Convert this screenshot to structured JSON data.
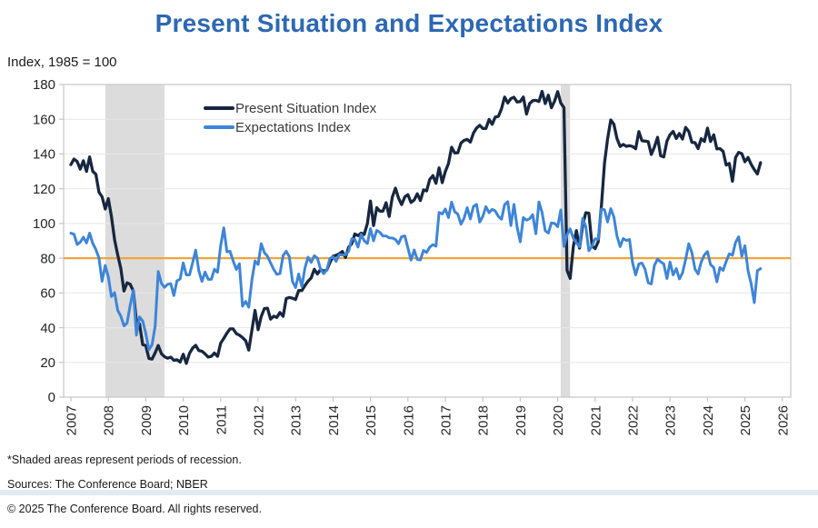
{
  "header": {
    "title": "Present Situation and Expectations Index",
    "subtitle": "Index, 1985 = 100"
  },
  "footnotes": {
    "line1": "*Shaded areas represent periods of recession.",
    "line2": "Sources:  The Conference Board;  NBER",
    "line3": "© 2025 The Conference Board. All rights reserved."
  },
  "colors": {
    "title_blue": "#2d68b3",
    "present_situation": "#172740",
    "expectations": "#3e85d8",
    "benchmark_orange": "#efa63b",
    "recession_gray": "#dcdcdc",
    "gridline": "#e7e7e7",
    "axis_frame": "#c6c6c6",
    "footer_bar": "#e2eaf2"
  },
  "chart_data": {
    "type": "line",
    "title": "Present Situation and Expectations Index",
    "ylabel": "Index, 1985 = 100",
    "xlabel": "",
    "grid": true,
    "legend_position": "top-center-inside",
    "ylim": [
      0,
      180
    ],
    "y_ticks": [
      0,
      20,
      40,
      60,
      80,
      100,
      120,
      140,
      160,
      180
    ],
    "x_ticks": [
      2007,
      2008,
      2009,
      2010,
      2011,
      2012,
      2013,
      2014,
      2015,
      2016,
      2017,
      2018,
      2019,
      2020,
      2021,
      2022,
      2023,
      2024,
      2025,
      2026
    ],
    "x_start_year": 2007,
    "points_per_year": 12,
    "x_end_label": "2025-06",
    "benchmark": {
      "value": 80,
      "color": "#efa63b"
    },
    "recessions": [
      {
        "from": 2007.92,
        "to": 2009.5
      },
      {
        "from": 2020.08,
        "to": 2020.33
      }
    ],
    "recession_note": "Shaded areas represent periods of recession",
    "series": [
      {
        "name": "Present Situation Index",
        "color": "#172740",
        "values": [
          133.9,
          137.1,
          135.7,
          131.3,
          136.1,
          129.9,
          138.3,
          130.1,
          128.3,
          118.0,
          115.4,
          108.3,
          114.3,
          104.0,
          90.6,
          81.9,
          74.2,
          61.1,
          65.8,
          65.0,
          61.1,
          43.5,
          42.2,
          30.2,
          29.7,
          22.3,
          21.9,
          25.5,
          29.7,
          25.0,
          23.3,
          22.4,
          23.0,
          21.2,
          21.5,
          20.2,
          24.7,
          19.4,
          25.2,
          28.2,
          29.8,
          26.8,
          26.4,
          24.9,
          23.1,
          23.5,
          25.4,
          23.5,
          31.1,
          33.8,
          36.9,
          39.3,
          39.3,
          36.6,
          35.7,
          34.3,
          32.5,
          27.1,
          38.3,
          49.9,
          38.8,
          46.4,
          51.0,
          51.2,
          44.9,
          46.6,
          45.9,
          48.7,
          46.5,
          56.7,
          57.4,
          57.0,
          56.2,
          61.4,
          61.4,
          64.2,
          66.7,
          68.7,
          73.6,
          70.9,
          73.5,
          72.6,
          73.1,
          77.5,
          81.1,
          81.7,
          82.5,
          83.9,
          80.4,
          86.3,
          88.3,
          93.9,
          93.0,
          94.4,
          93.7,
          99.9,
          112.9,
          98.8,
          109.1,
          107.1,
          107.1,
          111.9,
          104.0,
          115.1,
          120.3,
          114.6,
          110.9,
          115.3,
          116.6,
          112.1,
          113.5,
          117.1,
          113.2,
          119.3,
          118.8,
          125.3,
          127.5,
          123.1,
          132.0,
          123.5,
          130.0,
          134.4,
          143.9,
          140.6,
          140.7,
          146.3,
          147.8,
          148.4,
          146.9,
          152.0,
          154.9,
          156.5,
          154.7,
          154.7,
          159.9,
          157.1,
          161.2,
          161.7,
          166.1,
          172.8,
          169.4,
          171.9,
          172.7,
          169.9,
          170.2,
          172.8,
          163.0,
          169.0,
          170.7,
          170.9,
          170.2,
          176.0,
          169.0,
          173.9,
          166.6,
          170.5,
          175.9,
          169.3,
          166.7,
          73.0,
          68.4,
          86.7,
          95.9,
          85.8,
          98.9,
          106.2,
          105.9,
          87.2,
          85.5,
          89.6,
          110.1,
          134.7,
          148.7,
          159.6,
          157.2,
          148.9,
          144.3,
          145.5,
          144.4,
          144.8,
          144.3,
          143.0,
          152.9,
          147.6,
          147.4,
          147.1,
          139.7,
          144.0,
          149.6,
          138.9,
          138.3,
          147.4,
          151.1,
          153.0,
          148.9,
          151.8,
          148.6,
          155.3,
          153.0,
          146.7,
          146.5,
          143.1,
          148.8,
          147.2,
          154.9,
          147.2,
          151.0,
          142.9,
          143.1,
          141.5,
          133.6,
          134.6,
          124.3,
          138.0,
          140.9,
          140.2,
          135.5,
          138.0,
          134.0,
          131.0,
          128.5,
          135.0
        ]
      },
      {
        "name": "Expectations Index",
        "color": "#3e85d8",
        "values": [
          94.4,
          93.8,
          87.9,
          89.2,
          92.1,
          88.8,
          94.4,
          88.6,
          85.0,
          80.1,
          66.7,
          75.8,
          69.3,
          57.9,
          60.1,
          50.0,
          46.7,
          41.0,
          42.7,
          52.8,
          61.5,
          35.7,
          46.2,
          43.8,
          36.7,
          27.3,
          30.2,
          40.8,
          72.3,
          65.5,
          63.2,
          65.0,
          65.3,
          58.5,
          67.0,
          68.0,
          77.3,
          70.4,
          70.4,
          77.4,
          84.6,
          72.7,
          66.6,
          72.0,
          67.8,
          67.8,
          73.6,
          71.9,
          87.3,
          97.5,
          83.7,
          84.0,
          78.5,
          73.5,
          76.8,
          52.4,
          55.1,
          51.8,
          67.3,
          78.4,
          76.4,
          88.4,
          83.2,
          81.1,
          77.3,
          73.5,
          70.7,
          71.1,
          81.5,
          84.0,
          80.9,
          66.6,
          63.1,
          70.9,
          63.7,
          74.3,
          80.6,
          77.6,
          81.4,
          80.1,
          73.6,
          71.1,
          73.2,
          79.9,
          80.8,
          78.2,
          82.1,
          81.8,
          82.0,
          84.0,
          91.1,
          90.9,
          86.4,
          93.7,
          90.0,
          88.5,
          97.0,
          90.0,
          96.0,
          94.9,
          92.8,
          92.8,
          91.7,
          91.6,
          90.8,
          88.3,
          92.4,
          92.8,
          85.9,
          78.9,
          84.7,
          79.3,
          79.0,
          84.5,
          83.3,
          86.4,
          87.8,
          86.9,
          106.3,
          105.5,
          108.3,
          103.4,
          112.3,
          106.7,
          105.4,
          99.6,
          103.0,
          109.1,
          102.6,
          109.8,
          111.0,
          100.8,
          104.0,
          109.7,
          106.2,
          108.1,
          107.2,
          104.0,
          102.4,
          110.9,
          112.5,
          98.8,
          111.0,
          97.7,
          89.4,
          103.4,
          101.9,
          102.7,
          105.0,
          94.1,
          112.4,
          106.4,
          95.8,
          94.5,
          100.3,
          100.0,
          98.1,
          107.8,
          86.8,
          93.5,
          96.9,
          91.5,
          88.9,
          86.6,
          102.9,
          98.2,
          84.3,
          87.0,
          91.2,
          90.9,
          108.3,
          107.9,
          100.9,
          108.5,
          103.8,
          92.8,
          86.7,
          91.3,
          90.2,
          90.8,
          77.3,
          70.4,
          76.7,
          77.2,
          73.7,
          65.8,
          65.2,
          75.8,
          79.5,
          77.9,
          76.7,
          68.3,
          77.8,
          70.4,
          74.0,
          68.1,
          71.5,
          79.3,
          88.3,
          83.3,
          73.7,
          70.9,
          77.8,
          81.9,
          83.8,
          76.3,
          74.6,
          66.4,
          74.6,
          73.0,
          78.2,
          82.5,
          81.7,
          89.1,
          92.3,
          81.1,
          87.2,
          72.9,
          65.2,
          54.4,
          72.8,
          74.0
        ]
      }
    ]
  }
}
